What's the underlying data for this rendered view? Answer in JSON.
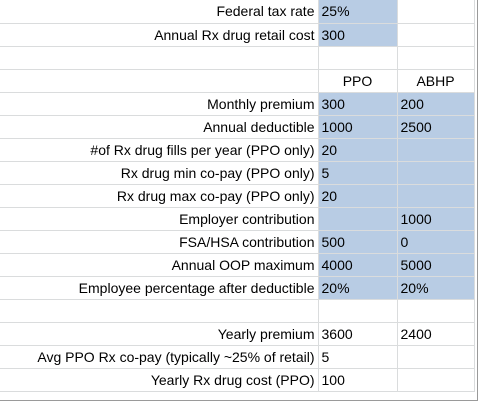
{
  "colors": {
    "highlight": "#b8cce4",
    "gridline": "#dadcdd"
  },
  "headers": {
    "ppo": "PPO",
    "abhp": "ABHP"
  },
  "rows": [
    {
      "label": "Federal tax rate",
      "ppo": "25%",
      "abhp": ""
    },
    {
      "label": "Annual Rx drug retail cost",
      "ppo": "300",
      "abhp": ""
    },
    {
      "label": "",
      "ppo": "",
      "abhp": ""
    },
    {
      "label": "",
      "ppo": "PPO",
      "abhp": "ABHP"
    },
    {
      "label": "Monthly premium",
      "ppo": "300",
      "abhp": "200"
    },
    {
      "label": "Annual deductible",
      "ppo": "1000",
      "abhp": "2500"
    },
    {
      "label": "#of Rx drug fills per year (PPO only)",
      "ppo": "20",
      "abhp": ""
    },
    {
      "label": "Rx drug min co-pay (PPO only)",
      "ppo": "5",
      "abhp": ""
    },
    {
      "label": "Rx drug max co-pay (PPO only)",
      "ppo": "20",
      "abhp": ""
    },
    {
      "label": "Employer contribution",
      "ppo": "",
      "abhp": "1000"
    },
    {
      "label": "FSA/HSA contribution",
      "ppo": "500",
      "abhp": "0"
    },
    {
      "label": "Annual OOP maximum",
      "ppo": "4000",
      "abhp": "5000"
    },
    {
      "label": "Employee percentage after deductible",
      "ppo": "20%",
      "abhp": "20%"
    },
    {
      "label": "",
      "ppo": "",
      "abhp": ""
    },
    {
      "label": "Yearly premium",
      "ppo": "3600",
      "abhp": "2400"
    },
    {
      "label": "Avg PPO Rx co-pay (typically ~25% of retail)",
      "ppo": "5",
      "abhp": ""
    },
    {
      "label": "Yearly Rx drug cost (PPO)",
      "ppo": "100",
      "abhp": ""
    }
  ]
}
